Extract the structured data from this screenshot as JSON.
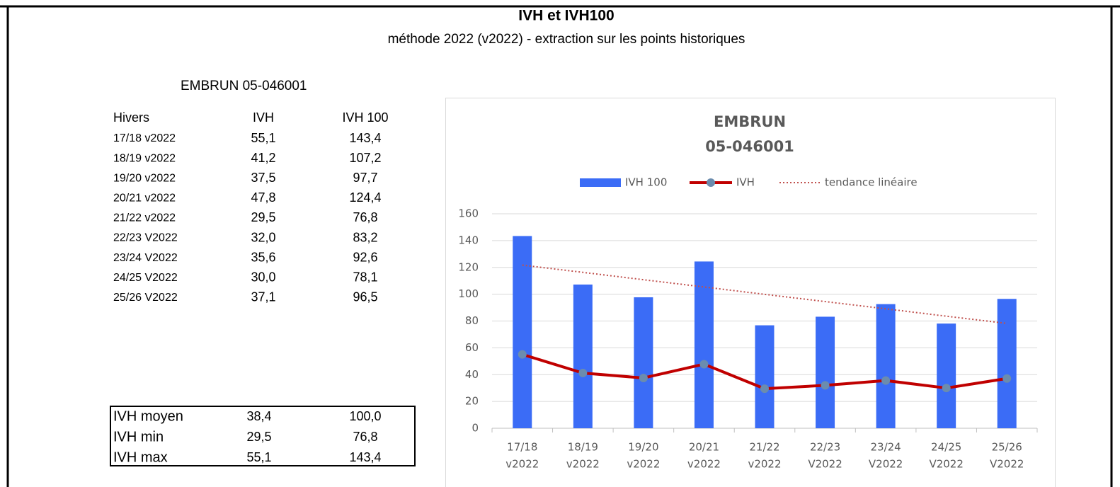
{
  "header": {
    "title": "IVH et IVH100",
    "subtitle": "méthode 2022 (v2022) - extraction sur les points historiques"
  },
  "station": "EMBRUN  05-046001",
  "table": {
    "header": [
      "Hivers",
      "IVH",
      "IVH 100"
    ],
    "rows": [
      [
        "17/18 v2022",
        "55,1",
        "143,4"
      ],
      [
        "18/19 v2022",
        "41,2",
        "107,2"
      ],
      [
        "19/20 v2022",
        "37,5",
        "97,7"
      ],
      [
        "20/21 v2022",
        "47,8",
        "124,4"
      ],
      [
        "21/22 v2022",
        "29,5",
        "76,8"
      ],
      [
        "22/23 V2022",
        "32,0",
        "83,2"
      ],
      [
        "23/24 V2022",
        "35,6",
        "92,6"
      ],
      [
        "24/25 V2022",
        "30,0",
        "78,1"
      ],
      [
        "25/26 V2022",
        "37,1",
        "96,5"
      ]
    ]
  },
  "summary": {
    "rows": [
      [
        "IVH moyen",
        "38,4",
        "100,0"
      ],
      [
        "IVH min",
        "29,5",
        "76,8"
      ],
      [
        "IVH max",
        "55,1",
        "143,4"
      ]
    ]
  },
  "chart_data": {
    "type": "bar_line",
    "title": [
      "EMBRUN",
      "05-046001"
    ],
    "categories": [
      [
        "17/18",
        "v2022"
      ],
      [
        "18/19",
        "v2022"
      ],
      [
        "19/20",
        "v2022"
      ],
      [
        "20/21",
        "v2022"
      ],
      [
        "21/22",
        "v2022"
      ],
      [
        "22/23",
        "V2022"
      ],
      [
        "23/24",
        "V2022"
      ],
      [
        "24/25",
        "V2022"
      ],
      [
        "25/26",
        "V2022"
      ]
    ],
    "series": [
      {
        "name": "IVH 100",
        "kind": "bar",
        "color": "#3b6cf6",
        "values": [
          143.4,
          107.2,
          97.7,
          124.4,
          76.8,
          83.2,
          92.6,
          78.1,
          96.5
        ]
      },
      {
        "name": "IVH",
        "kind": "line",
        "color": "#c00000",
        "marker_color": "#6b8cae",
        "values": [
          55.1,
          41.2,
          37.5,
          47.8,
          29.5,
          32.0,
          35.6,
          30.0,
          37.1
        ]
      },
      {
        "name": "tendance linéaire",
        "kind": "dotted",
        "color": "#c0504d",
        "values": [
          121.7,
          116.3,
          110.8,
          105.4,
          99.9,
          94.5,
          89.1,
          83.6,
          78.2
        ]
      }
    ],
    "ylim": [
      0,
      160
    ],
    "yticks": [
      0,
      20,
      40,
      60,
      80,
      100,
      120,
      140,
      160
    ],
    "grid": true,
    "legend": "top"
  }
}
